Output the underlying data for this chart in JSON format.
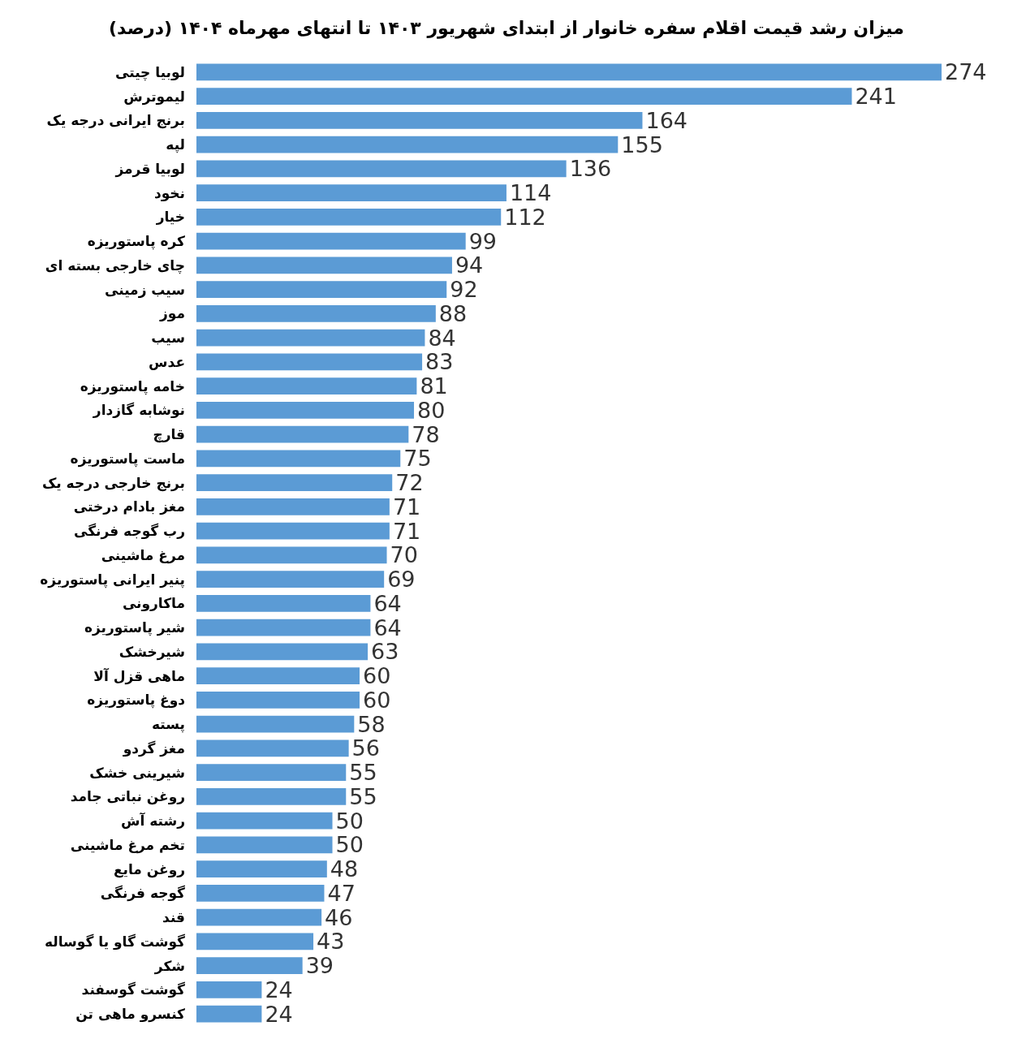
{
  "chart_data": {
    "type": "bar",
    "orientation": "horizontal",
    "data_labels": true,
    "title": "میزان رشد قیمت اقلام سفره خانوار از ابتدای شهریور ۱۴۰۳ تا انتهای مهرماه ۱۴۰۴ (درصد)",
    "categories": [
      "لوبیا چیتی",
      "لیموترش",
      "برنج ایرانی درجه یک",
      "لپه",
      "لوبیا قرمز",
      "نخود",
      "خیار",
      "کره پاستوریزه",
      "چای خارجی بسته ای",
      "سیب زمینی",
      "موز",
      "سیب",
      "عدس",
      "خامه پاستوریزه",
      "نوشابه گازدار",
      "قارچ",
      "ماست پاستوریزه",
      "برنج خارجی درجه یک",
      "مغز بادام درختی",
      "رب گوجه فرنگی",
      "مرغ ماشینی",
      "پنیر ایرانی پاستوریزه",
      "ماکارونی",
      "شیر پاستوریزه",
      "شیرخشک",
      "ماهی قزل آلا",
      "دوغ پاستوریزه",
      "پسته",
      "مغز گردو",
      "شیرینی خشک",
      "روغن نباتی جامد",
      "رشته آش",
      "تخم مرغ ماشینی",
      "روغن مایع",
      "گوجه فرنگی",
      "قند",
      "گوشت گاو یا گوساله",
      "شکر",
      "گوشت گوسفند",
      "کنسرو ماهی تن"
    ],
    "values": [
      274,
      241,
      164,
      155,
      136,
      114,
      112,
      99,
      94,
      92,
      88,
      84,
      83,
      81,
      80,
      78,
      75,
      72,
      71,
      71,
      70,
      69,
      64,
      64,
      63,
      60,
      60,
      58,
      56,
      55,
      55,
      50,
      50,
      48,
      47,
      46,
      43,
      39,
      24,
      24
    ],
    "color": "#5b9bd5"
  }
}
